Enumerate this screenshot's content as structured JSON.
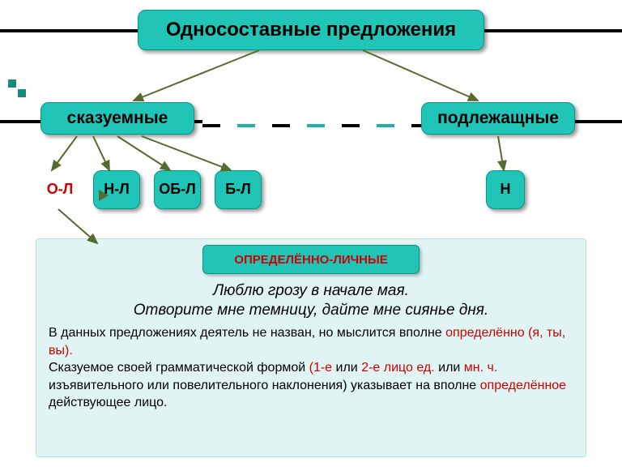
{
  "colors": {
    "teal": "#20c5b8",
    "teal_border": "#0a9488",
    "panel": "#e0f5f3",
    "accent_red": "#d00000",
    "arrow": "#556b2f",
    "black": "#000000",
    "bg": "#ffffff"
  },
  "title": "Односоставные предложения",
  "categories": {
    "left": "сказуемные",
    "right": "подлежащные"
  },
  "leaves": {
    "l1": "О-Л",
    "l2": "Н-Л",
    "l3": "ОБ-Л",
    "l4": "Б-Л",
    "l5": "Н"
  },
  "badge": "ОПРЕДЕЛЁННО-ЛИЧНЫЕ",
  "examples": {
    "e1": "Люблю грозу в начале мая.",
    "e2": "Отворите мне темницу, дайте мне сиянье дня."
  },
  "desc": {
    "p1a": "В данных предложениях деятель не назван, но мыслится вполне ",
    "p1b": "определённо (я, ты, вы).",
    "p2a": "Сказуемое своей грамматической формой ",
    "p2b": "(1-е",
    "p2c": " или ",
    "p2d": "2-е лицо ед.",
    "p2e": " или ",
    "p2f": "мн. ч.",
    "p2g": " изъявительного или повелительного наклонения) указывает на вполне ",
    "p2h": "определённое",
    "p2i": " действующее лицо."
  },
  "fontsize": {
    "title": 24,
    "category": 21,
    "leaf": 18,
    "badge": 15,
    "example": 19,
    "desc": 16
  },
  "arrows": [
    {
      "from": [
        320,
        62
      ],
      "to": [
        165,
        124
      ]
    },
    {
      "from": [
        448,
        62
      ],
      "to": [
        590,
        124
      ]
    },
    {
      "from": [
        95,
        168
      ],
      "to": [
        64,
        210
      ]
    },
    {
      "from": [
        115,
        168
      ],
      "to": [
        135,
        210
      ]
    },
    {
      "from": [
        145,
        168
      ],
      "to": [
        210,
        210
      ]
    },
    {
      "from": [
        175,
        168
      ],
      "to": [
        285,
        210
      ]
    },
    {
      "from": [
        615,
        168
      ],
      "to": [
        622,
        210
      ]
    },
    {
      "from": [
        72,
        258
      ],
      "to": [
        120,
        300
      ]
    }
  ],
  "arrow_style": {
    "stroke": "#556b2f",
    "width": 2,
    "head": 7
  }
}
